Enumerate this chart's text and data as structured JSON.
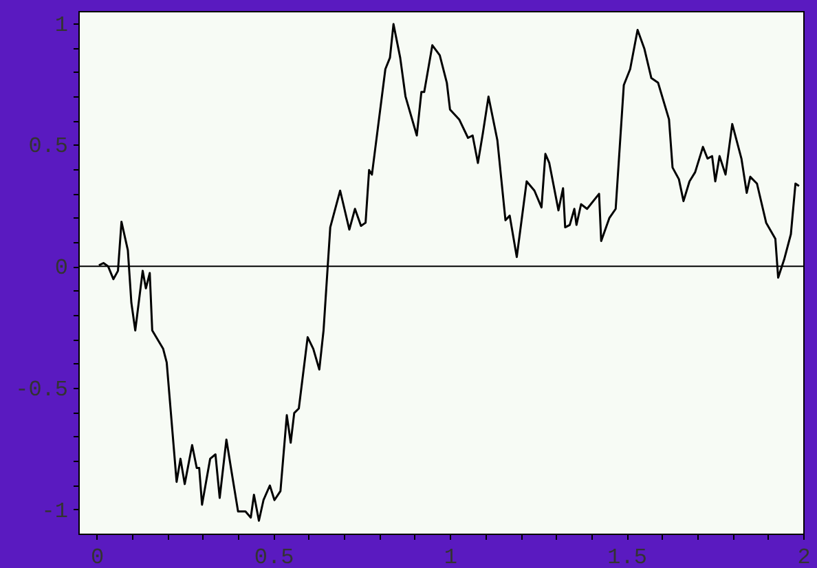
{
  "chart_data": {
    "type": "line",
    "xlim": [
      -0.052,
      2.0
    ],
    "ylim": [
      -1.1,
      1.05
    ],
    "xticks": [
      0,
      {
        "value": 0.1,
        "label": null
      },
      {
        "value": 0.2,
        "label": null
      },
      {
        "value": 0.3,
        "label": null
      },
      {
        "value": 0.4,
        "label": null
      },
      0.5,
      {
        "value": 0.6,
        "label": null
      },
      {
        "value": 0.7,
        "label": null
      },
      {
        "value": 0.8,
        "label": null
      },
      {
        "value": 0.9,
        "label": null
      },
      1,
      {
        "value": 1.1,
        "label": null
      },
      {
        "value": 1.2,
        "label": null
      },
      {
        "value": 1.3,
        "label": null
      },
      {
        "value": 1.4,
        "label": null
      },
      1.5,
      {
        "value": 1.6,
        "label": null
      },
      {
        "value": 1.7,
        "label": null
      },
      {
        "value": 1.8,
        "label": null
      },
      {
        "value": 1.9,
        "label": null
      },
      2
    ],
    "yticks": [
      -1,
      {
        "value": -0.9,
        "label": null
      },
      {
        "value": -0.8,
        "label": null
      },
      {
        "value": -0.7,
        "label": null
      },
      {
        "value": -0.6,
        "label": null
      },
      -0.5,
      {
        "value": -0.4,
        "label": null
      },
      {
        "value": -0.3,
        "label": null
      },
      {
        "value": -0.2,
        "label": null
      },
      {
        "value": -0.1,
        "label": null
      },
      0,
      {
        "value": 0.1,
        "label": null
      },
      {
        "value": 0.2,
        "label": null
      },
      {
        "value": 0.3,
        "label": null
      },
      {
        "value": 0.4,
        "label": null
      },
      0.5,
      {
        "value": 0.6,
        "label": null
      },
      {
        "value": 0.7,
        "label": null
      },
      {
        "value": 0.8,
        "label": null
      },
      {
        "value": 0.9,
        "label": null
      },
      1
    ],
    "grid": false,
    "marker": "none",
    "line_style": "solid",
    "ref_lines": [
      {
        "axis": "y",
        "value": 0,
        "color": "#000000"
      }
    ],
    "x": [
      0.006,
      0.019,
      0.032,
      0.047,
      0.06,
      0.07,
      0.088,
      0.098,
      0.109,
      0.13,
      0.139,
      0.15,
      0.157,
      0.188,
      0.198,
      0.226,
      0.237,
      0.249,
      0.27,
      0.283,
      0.29,
      0.298,
      0.321,
      0.336,
      0.348,
      0.367,
      0.382,
      0.4,
      0.421,
      0.436,
      0.445,
      0.459,
      0.472,
      0.49,
      0.503,
      0.52,
      0.538,
      0.549,
      0.559,
      0.572,
      0.597,
      0.613,
      0.63,
      0.642,
      0.661,
      0.689,
      0.715,
      0.731,
      0.748,
      0.761,
      0.771,
      0.779,
      0.817,
      0.83,
      0.84,
      0.859,
      0.874,
      0.906,
      0.919,
      0.927,
      0.95,
      0.971,
      0.991,
      1.0,
      1.026,
      1.051,
      1.064,
      1.079,
      1.093,
      1.109,
      1.134,
      1.157,
      1.169,
      1.189,
      1.217,
      1.239,
      1.259,
      1.27,
      1.281,
      1.307,
      1.32,
      1.326,
      1.339,
      1.352,
      1.358,
      1.371,
      1.388,
      1.422,
      1.428,
      1.451,
      1.469,
      1.492,
      1.51,
      1.531,
      1.55,
      1.57,
      1.589,
      1.62,
      1.63,
      1.648,
      1.661,
      1.678,
      1.694,
      1.716,
      1.729,
      1.742,
      1.751,
      1.763,
      1.78,
      1.799,
      1.825,
      1.84,
      1.85,
      1.869,
      1.895,
      1.921,
      1.929,
      1.946,
      1.965,
      1.978,
      1.988
    ],
    "series": [
      {
        "color": "#000000",
        "values": [
          0.004,
          0.013,
          0,
          -0.053,
          -0.019,
          0.183,
          0.066,
          -0.151,
          -0.264,
          -0.019,
          -0.091,
          -0.028,
          -0.264,
          -0.34,
          -0.396,
          -0.887,
          -0.792,
          -0.896,
          -0.736,
          -0.83,
          -0.83,
          -0.981,
          -0.792,
          -0.774,
          -0.953,
          -0.713,
          -0.849,
          -1.009,
          -1.009,
          -1.034,
          -0.94,
          -1.047,
          -0.962,
          -0.902,
          -0.962,
          -0.925,
          -0.613,
          -0.726,
          -0.604,
          -0.585,
          -0.292,
          -0.34,
          -0.425,
          -0.264,
          0.16,
          0.311,
          0.151,
          0.236,
          0.166,
          0.179,
          0.396,
          0.377,
          0.811,
          0.858,
          0.996,
          0.858,
          0.698,
          0.538,
          0.717,
          0.717,
          0.909,
          0.868,
          0.755,
          0.645,
          0.604,
          0.528,
          0.538,
          0.425,
          0.547,
          0.698,
          0.519,
          0.189,
          0.208,
          0.038,
          0.349,
          0.311,
          0.242,
          0.462,
          0.425,
          0.23,
          0.321,
          0.16,
          0.17,
          0.236,
          0.17,
          0.255,
          0.236,
          0.298,
          0.104,
          0.198,
          0.236,
          0.745,
          0.811,
          0.972,
          0.896,
          0.774,
          0.755,
          0.604,
          0.406,
          0.358,
          0.268,
          0.349,
          0.387,
          0.491,
          0.443,
          0.453,
          0.349,
          0.453,
          0.377,
          0.585,
          0.443,
          0.302,
          0.368,
          0.34,
          0.179,
          0.113,
          -0.047,
          0.028,
          0.132,
          0.34,
          0.33
        ]
      }
    ]
  }
}
